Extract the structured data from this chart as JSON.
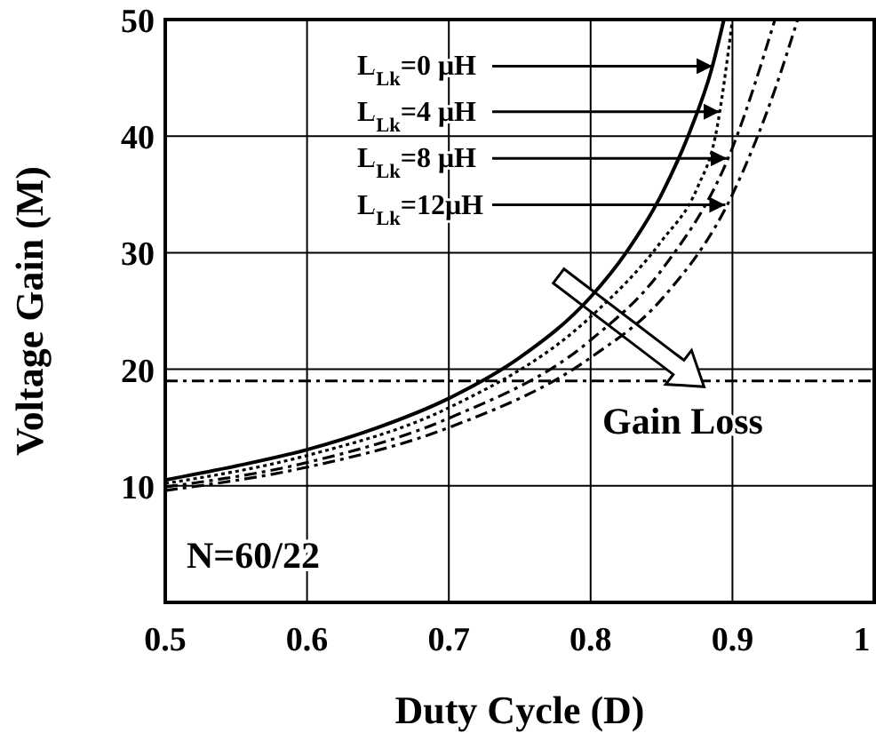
{
  "chart_data": {
    "type": "line",
    "xlabel": "Duty Cycle (D)",
    "ylabel": "Voltage Gain (M)",
    "xlim": [
      0.5,
      1
    ],
    "xticks": [
      0.5,
      0.6,
      0.7,
      0.8,
      0.9,
      1
    ],
    "ylim": [
      0,
      50
    ],
    "yticks": [
      {
        "value": 0,
        "label": null
      },
      10,
      20,
      30,
      40,
      50
    ],
    "grid": true,
    "series": [
      {
        "color": "#000000",
        "line_style": "solid",
        "x": [
          0.5,
          0.55,
          0.6,
          0.65,
          0.7,
          0.75,
          0.8,
          0.825,
          0.85,
          0.87,
          0.885,
          0.894
        ],
        "values": [
          10.5,
          11.7,
          13.1,
          15,
          17.5,
          21,
          26.2,
          30,
          35,
          40.4,
          45.6,
          50
        ]
      },
      {
        "color": "#000000",
        "line_style": "dotted",
        "x": [
          0.5,
          0.6,
          0.7,
          0.8,
          0.85,
          0.875,
          0.888,
          0.9
        ],
        "values": [
          10.2,
          12.6,
          16.7,
          24.5,
          31,
          35.5,
          40,
          50
        ]
      },
      {
        "color": "#000000",
        "line_style": "dashed",
        "x": [
          0.5,
          0.6,
          0.7,
          0.8,
          0.85,
          0.9,
          0.93
        ],
        "values": [
          9.9,
          12,
          15.8,
          22.5,
          28.5,
          39,
          50
        ]
      },
      {
        "color": "#000000",
        "line_style": "dashed",
        "x": [
          0.5,
          0.6,
          0.7,
          0.8,
          0.85,
          0.9,
          0.93,
          0.946
        ],
        "values": [
          9.6,
          11.6,
          15,
          21,
          26,
          35,
          44,
          50
        ]
      }
    ],
    "ref_lines": [
      {
        "axis": "y",
        "value": 19,
        "color": "#000000",
        "line_style": "dashed"
      }
    ],
    "annotations": [
      {
        "text": "L$_{Lk}$=0 μH",
        "x": 0.886,
        "y": 46
      },
      {
        "text": "L$_{Lk}$=4 μH",
        "x": 0.891,
        "y": 42.1
      },
      {
        "text": "L$_{Lk}$=8 μH",
        "x": 0.896,
        "y": 38.1
      },
      {
        "text": "L$_{Lk}$=12μH",
        "x": 0.895,
        "y": 34.1
      },
      "Gain Loss",
      "N=60/22"
    ]
  }
}
